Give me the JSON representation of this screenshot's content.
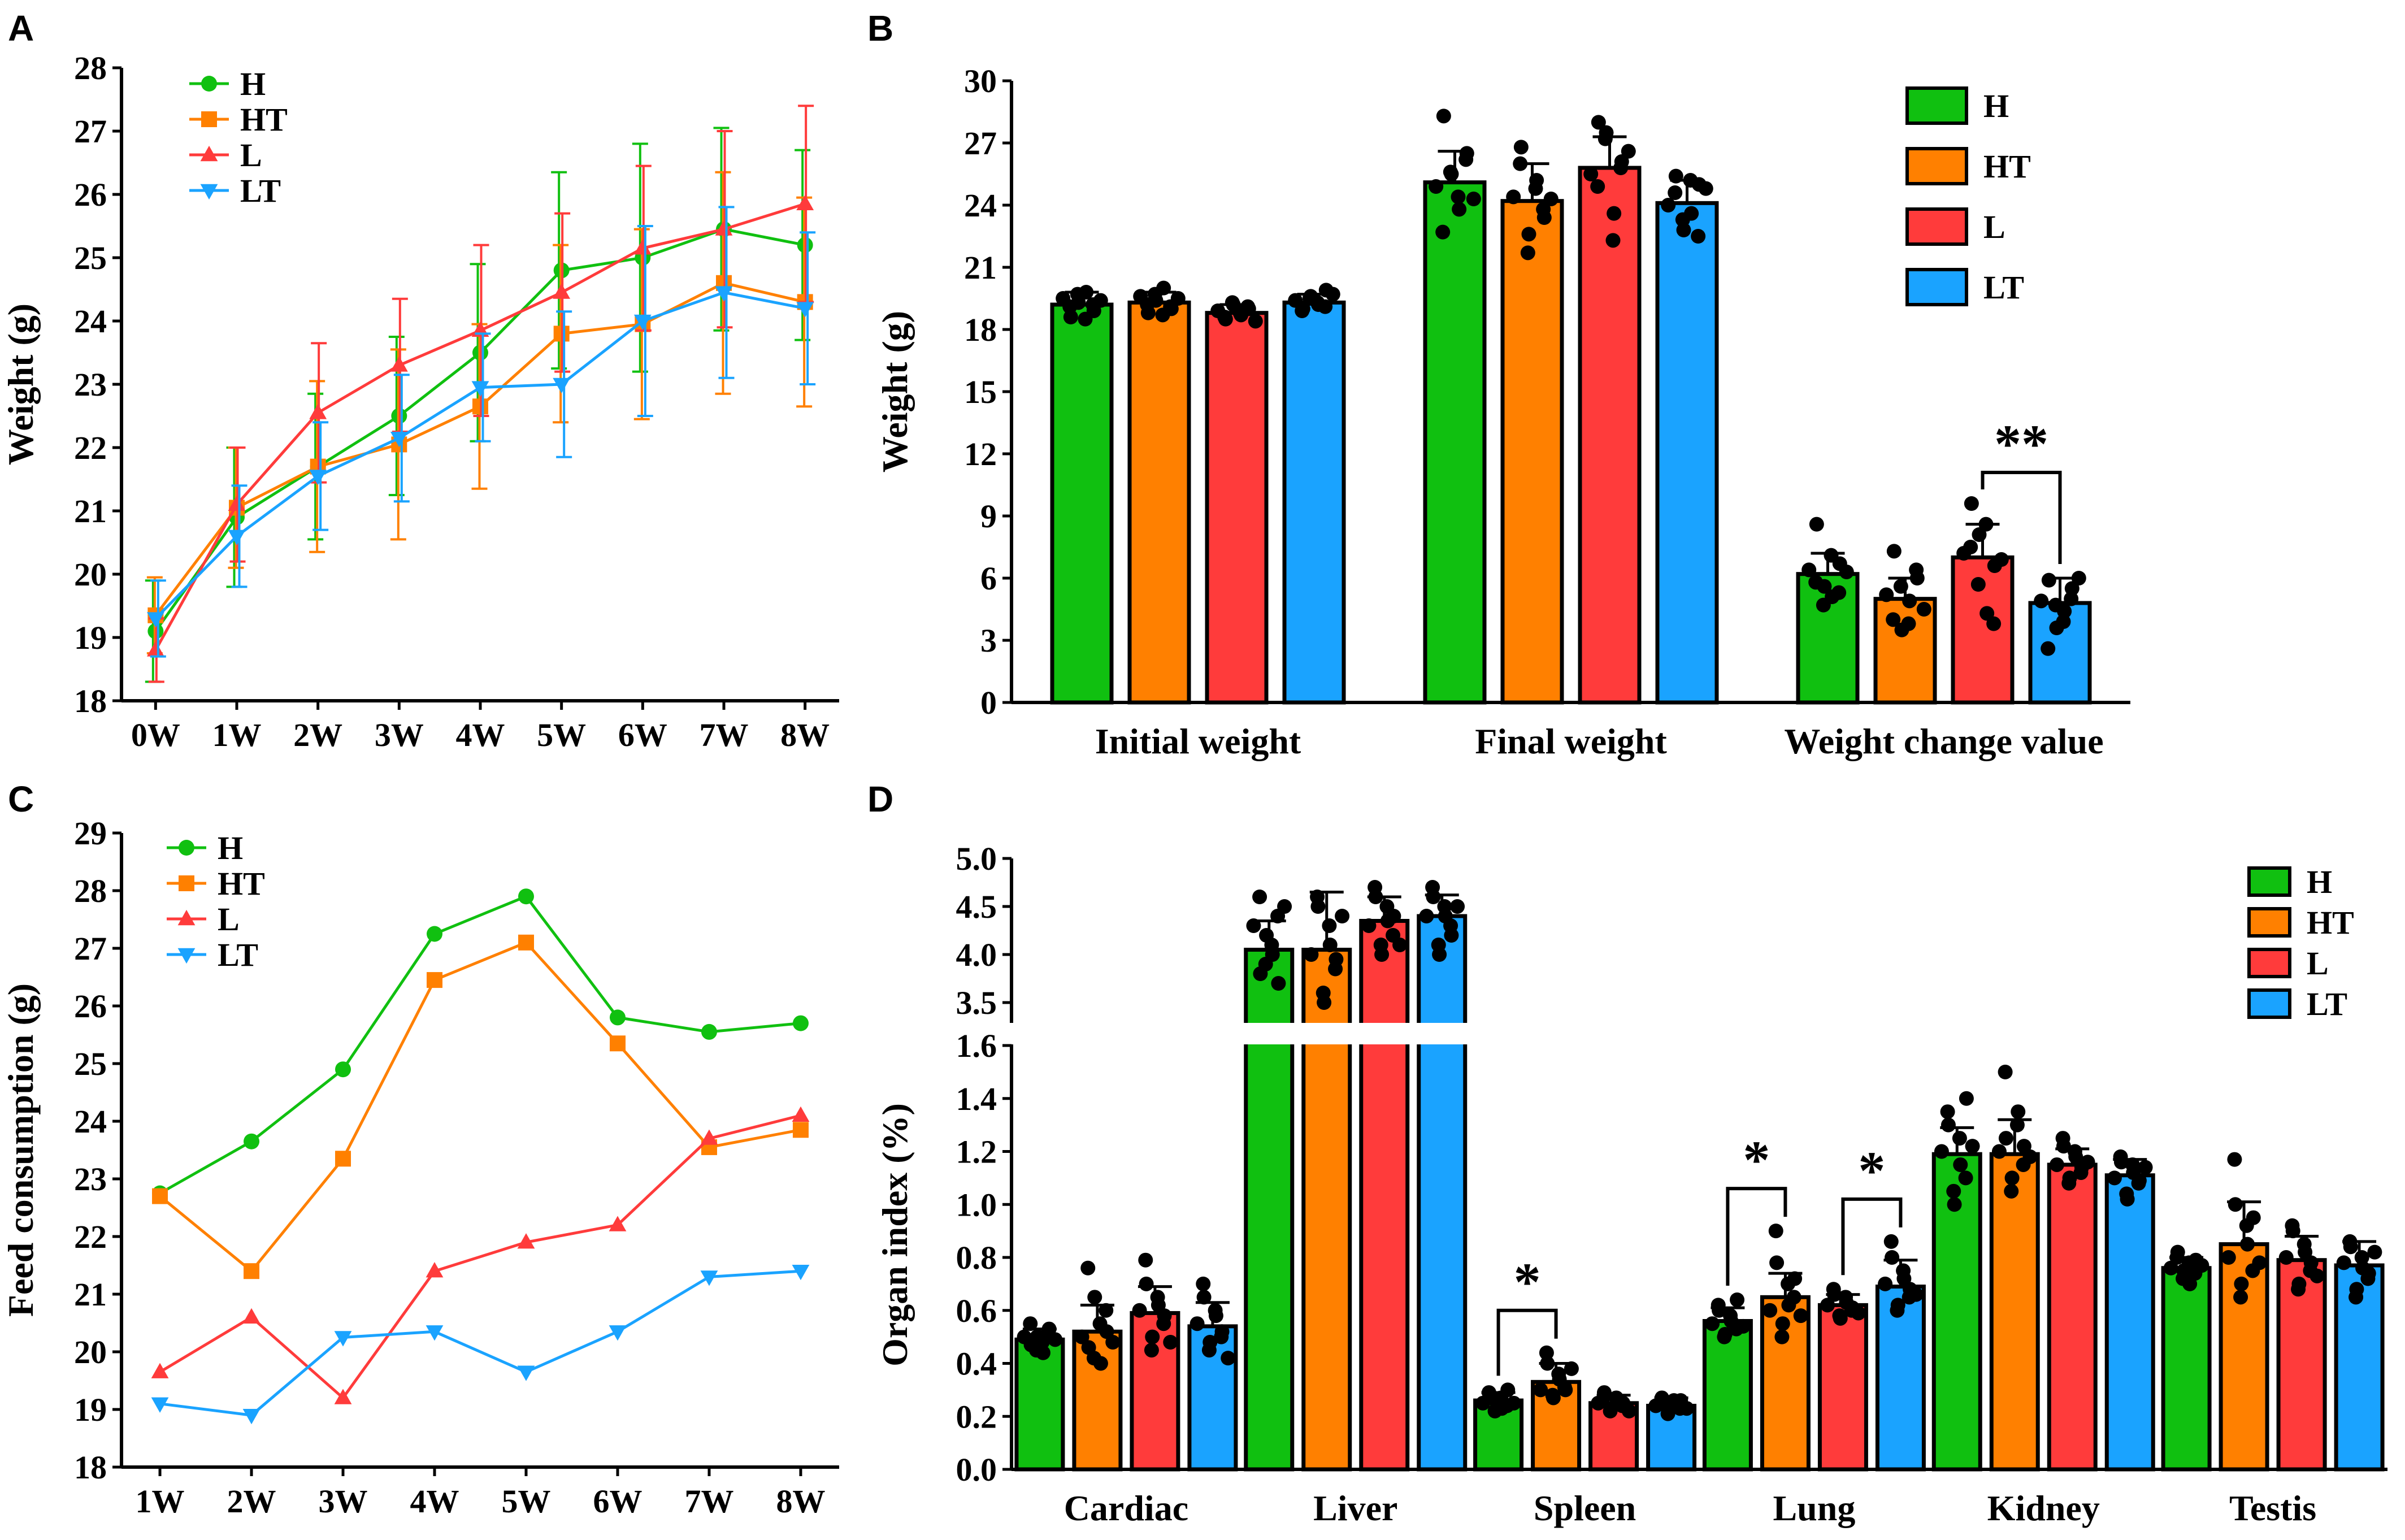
{
  "colors": {
    "H": "#10c010",
    "HT": "#ff8000",
    "L": "#ff3b3b",
    "LT": "#1aa3ff"
  },
  "chart_data": [
    {
      "panel": "A",
      "type": "line",
      "ylabel": "Weight (g)",
      "xlabel": "",
      "ylim": [
        18,
        28
      ],
      "yticks": [
        "18",
        "19",
        "20",
        "21",
        "22",
        "23",
        "24",
        "25",
        "26",
        "27",
        "28"
      ],
      "categories": [
        "0W",
        "1W",
        "2W",
        "3W",
        "4W",
        "5W",
        "6W",
        "7W",
        "8W"
      ],
      "legend_position": "top-left",
      "series": [
        {
          "name": "H",
          "marker": "circle",
          "values": [
            19.1,
            20.9,
            21.7,
            22.5,
            23.5,
            24.8,
            25.0,
            25.45,
            25.2
          ],
          "errors": [
            0.8,
            1.1,
            1.15,
            1.25,
            1.4,
            1.55,
            1.8,
            1.6,
            1.5
          ]
        },
        {
          "name": "HT",
          "marker": "square",
          "values": [
            19.35,
            21.05,
            21.7,
            22.05,
            22.65,
            23.8,
            23.95,
            24.6,
            24.3
          ],
          "errors": [
            0.6,
            0.95,
            1.35,
            1.5,
            1.3,
            1.4,
            1.5,
            1.75,
            1.65
          ]
        },
        {
          "name": "L",
          "marker": "triangle-up",
          "values": [
            18.8,
            21.1,
            22.55,
            23.3,
            23.85,
            24.45,
            25.15,
            25.45,
            25.85
          ],
          "errors": [
            0.5,
            0.9,
            1.1,
            1.05,
            1.35,
            1.25,
            1.3,
            1.55,
            1.55
          ]
        },
        {
          "name": "LT",
          "marker": "triangle-down",
          "values": [
            19.3,
            20.6,
            21.55,
            22.15,
            22.95,
            23.0,
            24.0,
            24.45,
            24.2
          ],
          "errors": [
            0.6,
            0.8,
            0.85,
            1.0,
            0.85,
            1.15,
            1.5,
            1.35,
            1.2
          ]
        }
      ]
    },
    {
      "panel": "B",
      "type": "bar",
      "ylabel": "Weight (g)",
      "xlabel": "",
      "ylim": [
        0,
        30
      ],
      "yticks": [
        "0",
        "3",
        "6",
        "9",
        "12",
        "15",
        "18",
        "21",
        "24",
        "27",
        "30"
      ],
      "categories": [
        "Initial weight",
        "Final weight",
        "Weight change value"
      ],
      "legend_position": "top-right",
      "series": [
        {
          "name": "H",
          "values": [
            19.2,
            25.1,
            6.2
          ],
          "errors": [
            0.6,
            1.5,
            1.0
          ]
        },
        {
          "name": "HT",
          "values": [
            19.3,
            24.2,
            5.0
          ],
          "errors": [
            0.5,
            1.8,
            1.0
          ]
        },
        {
          "name": "L",
          "values": [
            18.8,
            25.8,
            7.0
          ],
          "errors": [
            0.4,
            1.5,
            1.6
          ]
        },
        {
          "name": "LT",
          "values": [
            19.3,
            24.1,
            4.8
          ],
          "errors": [
            0.4,
            1.1,
            1.2
          ]
        }
      ],
      "points": [
        [
          [
            19.5,
            18.6,
            19.3,
            19.8,
            18.9,
            19.1,
            19.7,
            18.5,
            19.2,
            19.4
          ],
          [
            24.9,
            28.3,
            25.5,
            23.8,
            26.5,
            22.7,
            25.6,
            24.4,
            26.2,
            24.3
          ],
          [
            6.4,
            8.6,
            5.6,
            5.1,
            6.7,
            5.8,
            4.7,
            7.1,
            5.3,
            6.3
          ]
        ],
        [
          [
            19.6,
            18.8,
            19.4,
            20.0,
            19.0,
            19.2,
            19.7,
            18.7,
            19.1,
            19.5
          ],
          [
            24.4,
            26.8,
            22.6,
            25.2,
            23.4,
            26.0,
            21.7,
            24.8,
            23.8,
            24.3
          ],
          [
            5.2,
            7.3,
            3.5,
            4.9,
            6.0,
            4.0,
            5.6,
            3.8,
            6.4,
            4.5
          ]
        ],
        [
          [
            18.9,
            18.5,
            19.2,
            18.7,
            19.0,
            18.6,
            19.3,
            18.8,
            19.1,
            18.4
          ],
          [
            25.5,
            28.0,
            27.5,
            23.6,
            26.1,
            24.9,
            27.2,
            22.3,
            25.8,
            26.6
          ],
          [
            7.2,
            9.6,
            8.1,
            4.3,
            6.6,
            7.5,
            5.7,
            8.6,
            3.8,
            6.9
          ]
        ],
        [
          [
            19.4,
            19.0,
            19.6,
            19.2,
            19.9,
            18.9,
            19.5,
            19.3,
            19.1,
            19.7
          ],
          [
            24.0,
            25.4,
            22.8,
            23.6,
            25.0,
            24.6,
            23.3,
            25.2,
            22.5,
            24.8
          ],
          [
            4.9,
            5.9,
            3.6,
            4.4,
            5.5,
            2.6,
            4.7,
            3.9,
            5.0,
            6.0
          ]
        ]
      ],
      "annotations": [
        {
          "text": "**",
          "category": "Weight change value",
          "from": "L",
          "to": "LT"
        }
      ]
    },
    {
      "panel": "C",
      "type": "line",
      "ylabel": "Feed consumption (g)",
      "xlabel": "",
      "ylim": [
        18,
        29
      ],
      "yticks": [
        "18",
        "19",
        "20",
        "21",
        "22",
        "23",
        "24",
        "25",
        "26",
        "27",
        "28",
        "29"
      ],
      "categories": [
        "1W",
        "2W",
        "3W",
        "4W",
        "5W",
        "6W",
        "7W",
        "8W"
      ],
      "legend_position": "top-left",
      "series": [
        {
          "name": "H",
          "marker": "circle",
          "values": [
            22.75,
            23.65,
            24.9,
            27.25,
            27.9,
            25.8,
            25.55,
            25.7
          ]
        },
        {
          "name": "HT",
          "marker": "square",
          "values": [
            22.7,
            21.4,
            23.35,
            26.45,
            27.1,
            25.35,
            23.55,
            23.85
          ]
        },
        {
          "name": "L",
          "marker": "triangle-up",
          "values": [
            19.65,
            20.6,
            19.2,
            21.4,
            21.9,
            22.2,
            23.7,
            24.1
          ]
        },
        {
          "name": "LT",
          "marker": "triangle-down",
          "values": [
            19.1,
            18.9,
            20.25,
            20.35,
            19.65,
            20.35,
            21.3,
            21.4
          ]
        }
      ]
    },
    {
      "panel": "D",
      "type": "bar",
      "ylabel": "Organ index (%)",
      "xlabel": "",
      "ylim": [
        0,
        5.0
      ],
      "axis_break": [
        1.6,
        3.3
      ],
      "yticks_lower": [
        "0.0",
        "0.2",
        "0.4",
        "0.6",
        "0.8",
        "1.0",
        "1.2",
        "1.4",
        "1.6"
      ],
      "yticks_upper": [
        "3.5",
        "4.0",
        "4.5",
        "5.0"
      ],
      "categories": [
        "Cardiac",
        "Liver",
        "Spleen",
        "Lung",
        "Kidney",
        "Testis"
      ],
      "legend_position": "top-right",
      "series": [
        {
          "name": "H",
          "values": [
            0.49,
            4.05,
            0.26,
            0.56,
            1.19,
            0.76
          ],
          "errors": [
            0.04,
            0.3,
            0.03,
            0.05,
            0.1,
            0.04
          ]
        },
        {
          "name": "HT",
          "values": [
            0.52,
            4.05,
            0.33,
            0.65,
            1.19,
            0.85
          ],
          "errors": [
            0.1,
            0.6,
            0.07,
            0.09,
            0.13,
            0.16
          ]
        },
        {
          "name": "L",
          "values": [
            0.59,
            4.35,
            0.25,
            0.62,
            1.15,
            0.79
          ],
          "errors": [
            0.1,
            0.25,
            0.03,
            0.04,
            0.06,
            0.09
          ]
        },
        {
          "name": "LT",
          "values": [
            0.54,
            4.4,
            0.24,
            0.69,
            1.11,
            0.77
          ],
          "errors": [
            0.09,
            0.22,
            0.03,
            0.1,
            0.06,
            0.09
          ]
        }
      ],
      "points": [
        [
          [
            0.5,
            0.55,
            0.45,
            0.48,
            0.52,
            0.47,
            0.5,
            0.44,
            0.53,
            0.49
          ],
          [
            4.3,
            4.6,
            3.9,
            4.1,
            4.4,
            3.8,
            4.2,
            4.0,
            3.7,
            4.5
          ],
          [
            0.25,
            0.29,
            0.22,
            0.27,
            0.24,
            0.28,
            0.26,
            0.23,
            0.3,
            0.25
          ],
          [
            0.55,
            0.62,
            0.5,
            0.58,
            0.53,
            0.6,
            0.51,
            0.56,
            0.64,
            0.54
          ],
          [
            1.2,
            1.35,
            1.05,
            1.25,
            1.1,
            1.3,
            1.0,
            1.15,
            1.4,
            1.22
          ],
          [
            0.76,
            0.8,
            0.72,
            0.78,
            0.74,
            0.82,
            0.75,
            0.7,
            0.79,
            0.77
          ]
        ],
        [
          [
            0.5,
            0.76,
            0.42,
            0.55,
            0.6,
            0.46,
            0.65,
            0.4,
            0.52,
            0.48
          ],
          [
            4.0,
            4.6,
            3.6,
            4.3,
            3.85,
            4.5,
            3.5,
            4.1,
            3.95,
            4.4
          ],
          [
            0.3,
            0.44,
            0.28,
            0.36,
            0.31,
            0.4,
            0.27,
            0.34,
            0.3,
            0.38
          ],
          [
            0.6,
            0.9,
            0.5,
            0.7,
            0.65,
            0.78,
            0.55,
            0.62,
            0.72,
            0.58
          ],
          [
            1.2,
            1.5,
            1.05,
            1.3,
            1.15,
            1.25,
            1.1,
            1.35,
            1.22,
            1.18
          ],
          [
            0.8,
            1.17,
            0.65,
            0.92,
            0.75,
            1.0,
            0.7,
            0.85,
            0.95,
            0.78
          ]
        ],
        [
          [
            0.6,
            0.79,
            0.45,
            0.65,
            0.55,
            0.7,
            0.5,
            0.62,
            0.58,
            0.48
          ],
          [
            4.3,
            4.7,
            4.1,
            4.5,
            4.2,
            4.6,
            4.0,
            4.35,
            4.4,
            4.1
          ],
          [
            0.25,
            0.29,
            0.22,
            0.27,
            0.24,
            0.28,
            0.23,
            0.26,
            0.25,
            0.22
          ],
          [
            0.62,
            0.68,
            0.58,
            0.65,
            0.6,
            0.66,
            0.57,
            0.63,
            0.61,
            0.59
          ],
          [
            1.15,
            1.25,
            1.08,
            1.2,
            1.12,
            1.22,
            1.1,
            1.18,
            1.14,
            1.16
          ],
          [
            0.8,
            0.92,
            0.68,
            0.85,
            0.75,
            0.9,
            0.7,
            0.82,
            0.78,
            0.73
          ]
        ],
        [
          [
            0.55,
            0.7,
            0.45,
            0.6,
            0.5,
            0.65,
            0.48,
            0.58,
            0.52,
            0.42
          ],
          [
            4.4,
            4.7,
            4.1,
            4.5,
            4.3,
            4.6,
            4.0,
            4.4,
            4.2,
            4.5
          ],
          [
            0.24,
            0.27,
            0.21,
            0.26,
            0.23,
            0.25,
            0.22,
            0.24,
            0.26,
            0.23
          ],
          [
            0.7,
            0.86,
            0.6,
            0.75,
            0.65,
            0.8,
            0.62,
            0.72,
            0.68,
            0.66
          ],
          [
            1.1,
            1.18,
            1.04,
            1.15,
            1.08,
            1.16,
            1.02,
            1.12,
            1.09,
            1.14
          ],
          [
            0.78,
            0.86,
            0.65,
            0.8,
            0.72,
            0.84,
            0.68,
            0.76,
            0.74,
            0.82
          ]
        ]
      ],
      "annotations": [
        {
          "text": "*",
          "category": "Spleen",
          "from": "H",
          "to": "HT"
        },
        {
          "text": "*",
          "category": "Lung",
          "from": "H",
          "to": "HT"
        },
        {
          "text": "*",
          "category": "Lung",
          "from": "L",
          "to": "LT"
        }
      ]
    }
  ],
  "panels": [
    "A",
    "B",
    "C",
    "D"
  ]
}
